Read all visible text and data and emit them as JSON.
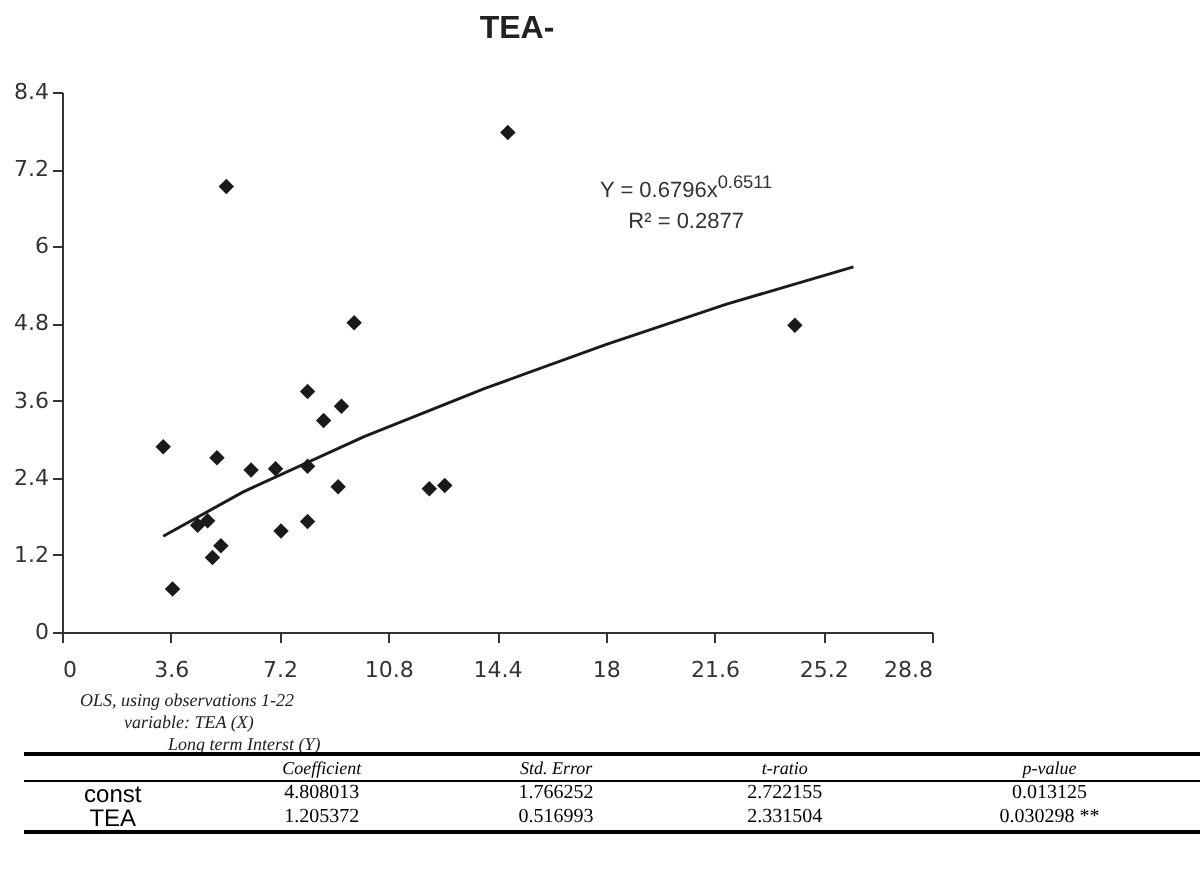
{
  "chart_data": {
    "type": "scatter",
    "title": "TEA-",
    "xlim": [
      0,
      28.8
    ],
    "xticks": [
      0,
      3.6,
      7.2,
      10.8,
      14.4,
      18,
      21.6,
      25.2,
      28.8
    ],
    "ylim": [
      0,
      8.4
    ],
    "yticks": [
      0,
      1.2,
      2.4,
      3.6,
      4.8,
      6,
      7.2,
      8.4
    ],
    "grid": false,
    "marker": "diamond",
    "series": [
      {
        "color": "#1a1a1a",
        "x": [
          3.35,
          3.66,
          4.49,
          4.82,
          4.98,
          5.26,
          5.13,
          5.44,
          6.26,
          7.07,
          7.25,
          8.13,
          8.13,
          8.13,
          8.66,
          9.14,
          9.25,
          9.67,
          12.16,
          12.67,
          14.76,
          24.26
        ],
        "values": [
          2.88,
          0.67,
          1.66,
          1.73,
          1.16,
          1.34,
          2.71,
          6.93,
          2.52,
          2.54,
          1.57,
          1.72,
          2.58,
          3.74,
          3.29,
          2.26,
          3.51,
          4.81,
          2.23,
          2.28,
          7.77,
          4.77
        ]
      },
      {
        "type": "line",
        "marker": "none",
        "color": "#1a1a1a",
        "x": [
          3.35,
          6,
          10,
          14,
          18,
          22,
          26.2
        ],
        "values": [
          1.49,
          2.18,
          3.04,
          3.79,
          4.47,
          5.1,
          5.68
        ]
      }
    ],
    "annotations": [
      "Y = 0.6796x$^{0.6511}$",
      "R² = 0.2877",
      "OLS, using observations 1-22",
      "variable: TEA (X)",
      "Long term Interst (Y)",
      "Coefficient",
      "Std. Error",
      "t-ratio",
      "p-value",
      "const",
      "4.808013",
      "1.766252",
      "2.722155",
      "0.013125",
      "TEA",
      "1.205372",
      "0.516993",
      "2.331504",
      "0.030298 **"
    ]
  }
}
